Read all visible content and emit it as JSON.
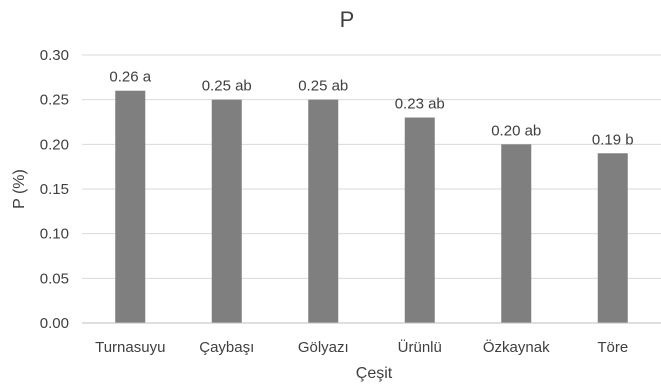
{
  "chart_data": {
    "type": "bar",
    "title": "P",
    "xlabel": "Çeşit",
    "ylabel": "P (%)",
    "ylim": [
      0,
      0.3
    ],
    "yticks": [
      "0.00",
      "0.05",
      "0.10",
      "0.15",
      "0.20",
      "0.25",
      "0.30"
    ],
    "categories": [
      "Turnasuyu",
      "Çaybaşı",
      "Gölyazı",
      "Ürünlü",
      "Özkaynak",
      "Töre"
    ],
    "values": [
      0.26,
      0.25,
      0.25,
      0.23,
      0.2,
      0.19
    ],
    "data_labels": [
      "0.26 a",
      "0.25 ab",
      "0.25 ab",
      "0.23 ab",
      "0.20 ab",
      "0.19 b"
    ],
    "grid": true,
    "bar_color": "#7f7f7f"
  }
}
